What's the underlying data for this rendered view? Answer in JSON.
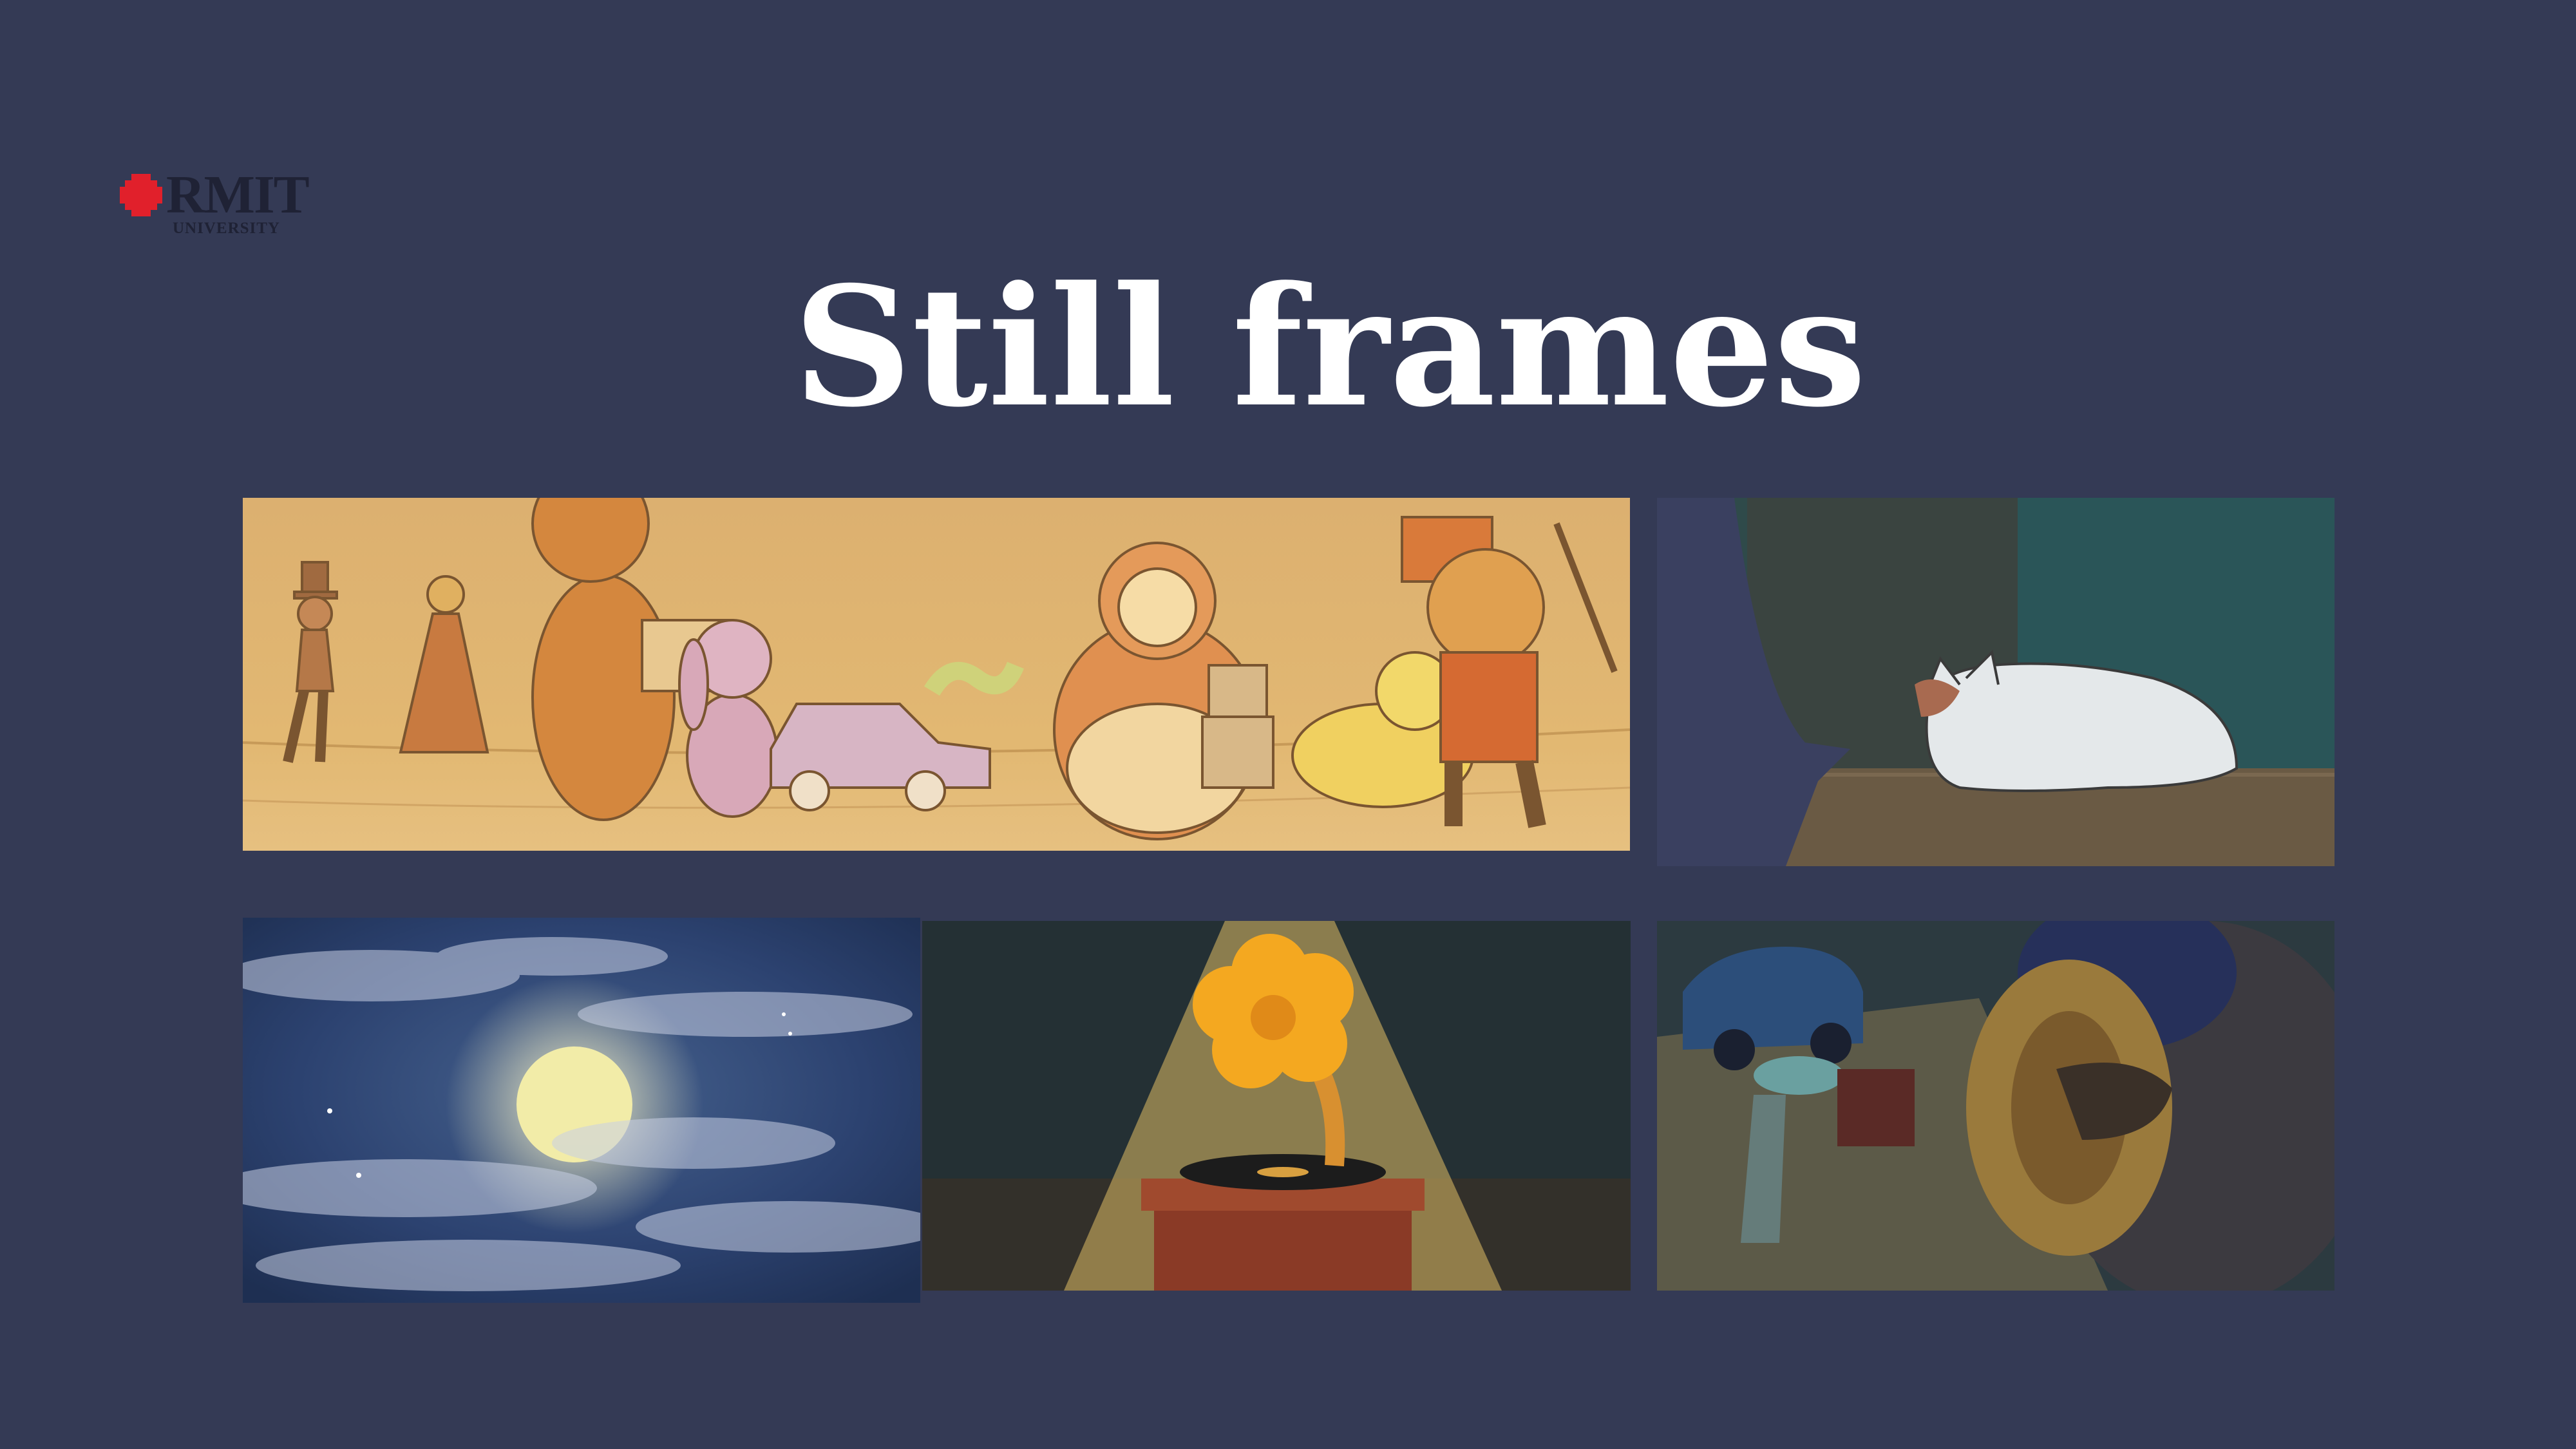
{
  "logo": {
    "wordmark": "RMIT",
    "subtitle": "UNIVERSITY"
  },
  "title": "Still frames",
  "colors": {
    "background": "#343a55",
    "title": "#ffffff",
    "logo_mark": "#e1202b"
  },
  "frames": [
    {
      "scene": "toy parade"
    },
    {
      "scene": "cat being petted"
    },
    {
      "scene": "moon behind clouds"
    },
    {
      "scene": "gramophone under spotlight"
    },
    {
      "scene": "toy bear with cymbals"
    }
  ]
}
